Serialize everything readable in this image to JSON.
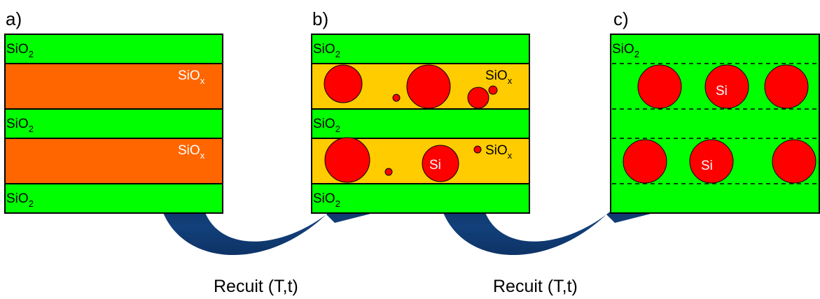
{
  "colors": {
    "sio2": "#00ff00",
    "siox_a": "#ff6600",
    "siox_b": "#ffcc00",
    "si": "#ff0000",
    "arrow": "#0d3366",
    "outline": "#000000"
  },
  "panels": {
    "a": {
      "label": "a)"
    },
    "b": {
      "label": "b)"
    },
    "c": {
      "label": "c)"
    }
  },
  "layers": {
    "sio2": {
      "base": "SiO",
      "sub": "2"
    },
    "siox": {
      "base": "SiO",
      "sub": "x"
    }
  },
  "particle_label": "Si",
  "steps": [
    {
      "label": "Recuit (T,t)"
    },
    {
      "label": "Recuit (T,t)"
    }
  ]
}
